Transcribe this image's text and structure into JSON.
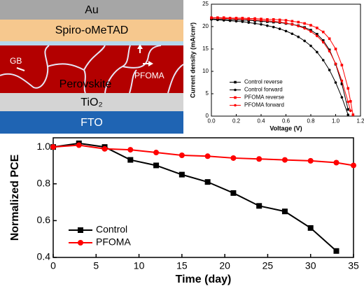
{
  "schematic": {
    "layers": {
      "au": "Au",
      "spiro": "Spiro-oMeTAD",
      "perovskite": "Perovskite",
      "tio2": "TiO₂",
      "fto": "FTO"
    },
    "annotations": {
      "gb": "GB",
      "pfoma": "PFOMA"
    }
  },
  "chart_data": [
    {
      "type": "line",
      "x_label": "Voltage (V)",
      "y_label": "Current density (mA/cm²)",
      "x": [
        0,
        0.05,
        0.1,
        0.15,
        0.2,
        0.25,
        0.3,
        0.35,
        0.4,
        0.45,
        0.5,
        0.55,
        0.6,
        0.65,
        0.7,
        0.75,
        0.8,
        0.85,
        0.9,
        0.95,
        1.0,
        1.05,
        1.1,
        1.12,
        1.14
      ],
      "series": [
        {
          "name": "Control reverse",
          "color": "#000000",
          "marker": "square",
          "values": [
            21.7,
            21.6,
            21.6,
            21.5,
            21.5,
            21.4,
            21.4,
            21.3,
            21.2,
            21.1,
            21.0,
            20.9,
            20.7,
            20.5,
            20.2,
            19.8,
            19.2,
            18.3,
            16.9,
            14.8,
            11.6,
            7.2,
            1.5,
            null,
            null
          ]
        },
        {
          "name": "Control forward",
          "color": "#000000",
          "marker": "circle",
          "values": [
            21.6,
            21.5,
            21.4,
            21.3,
            21.2,
            21.1,
            20.9,
            20.7,
            20.5,
            20.2,
            19.9,
            19.5,
            19.0,
            18.4,
            17.7,
            16.8,
            15.7,
            14.3,
            12.5,
            10.3,
            7.5,
            4.2,
            0.3,
            null,
            null
          ]
        },
        {
          "name": "PFOMA reverse",
          "color": "#ff0000",
          "marker": "square",
          "values": [
            22.0,
            22.0,
            22.0,
            21.9,
            21.9,
            21.9,
            21.8,
            21.8,
            21.7,
            21.6,
            21.6,
            21.5,
            21.4,
            21.2,
            21.0,
            20.7,
            20.3,
            19.7,
            18.8,
            17.3,
            15.0,
            11.4,
            6.2,
            3.3,
            0.3
          ]
        },
        {
          "name": "PFOMA forward",
          "color": "#ff0000",
          "marker": "circle",
          "values": [
            21.9,
            21.9,
            21.8,
            21.8,
            21.7,
            21.7,
            21.6,
            21.5,
            21.4,
            21.3,
            21.2,
            21.0,
            20.8,
            20.5,
            20.1,
            19.6,
            18.9,
            17.9,
            16.5,
            14.5,
            11.7,
            7.9,
            3.2,
            1.2,
            null
          ]
        }
      ],
      "xlim": [
        0,
        1.2
      ],
      "xticks": [
        {
          "value": 0,
          "label": "0.0"
        },
        0.2,
        0.4,
        0.6,
        0.8,
        {
          "value": 1,
          "label": "1.0"
        },
        1.2
      ],
      "ylim": [
        0,
        25
      ],
      "yticks": [
        0,
        5,
        10,
        15,
        20,
        25
      ],
      "legend": "lower left"
    },
    {
      "type": "line",
      "x_label": "Time (day)",
      "y_label": "Normalized PCE",
      "series": [
        {
          "name": "Control",
          "color": "#000000",
          "marker": "square",
          "x": [
            0,
            3,
            6,
            9,
            12,
            15,
            18,
            21,
            24,
            27,
            30,
            33
          ],
          "values": [
            1.0,
            1.02,
            1.0,
            0.93,
            0.9,
            0.85,
            0.81,
            0.75,
            0.68,
            0.65,
            0.56,
            0.435
          ]
        },
        {
          "name": "PFOMA",
          "color": "#ff0000",
          "marker": "circle",
          "x": [
            0,
            3,
            6,
            9,
            12,
            15,
            18,
            21,
            24,
            27,
            30,
            33,
            35
          ],
          "values": [
            1.0,
            1.01,
            0.99,
            0.985,
            0.97,
            0.955,
            0.95,
            0.94,
            0.935,
            0.93,
            0.925,
            0.915,
            0.9
          ]
        }
      ],
      "xlim": [
        0,
        35
      ],
      "xticks": [
        0,
        5,
        10,
        15,
        20,
        25,
        30,
        35
      ],
      "ylim": [
        0.4,
        1.05
      ],
      "yticks": [
        0.4,
        0.6,
        0.8,
        {
          "value": 1,
          "label": "1.0"
        }
      ],
      "legend": "lower left"
    }
  ]
}
